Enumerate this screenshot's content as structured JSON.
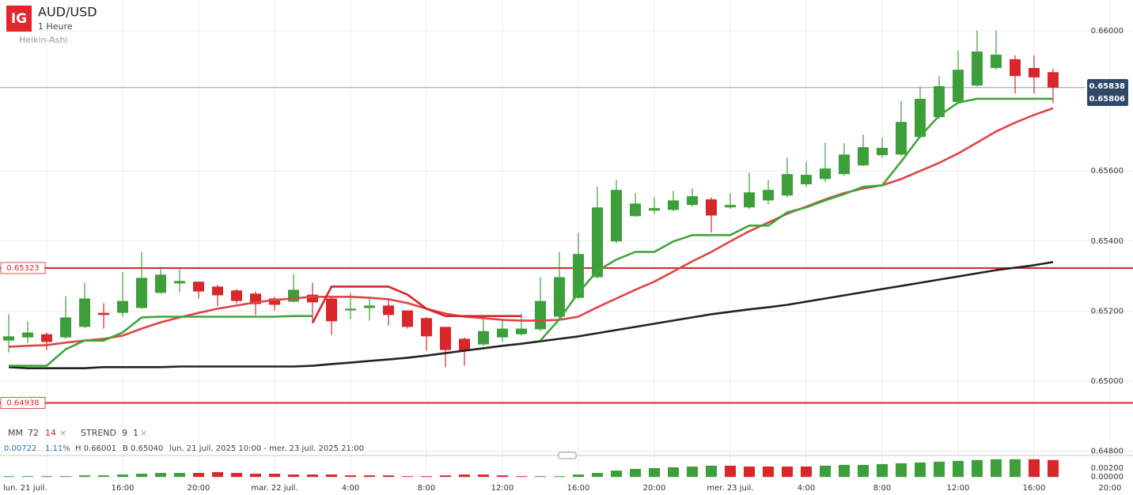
{
  "header": {
    "logo": "IG",
    "symbol": "AUD/USD",
    "interval": "1 Heure",
    "chart_style": "Heikin-Ashi"
  },
  "legend": {
    "ma_label": "MM",
    "ma_slow": "72",
    "ma_fast": "14",
    "close_ma": "×",
    "st_label": "STREND",
    "st_period": "9",
    "st_factor": "1",
    "close_st": "×"
  },
  "info": {
    "change": "0.00722",
    "change_pct": "1.11%",
    "high": "H 0.66001",
    "low": "B 0.65040",
    "range": "lun. 21 juil. 2025 10:00 - mer. 23 juil. 2025 21:00"
  },
  "chart_data": {
    "type": "candlestick",
    "x": [
      10,
      11,
      12,
      13,
      14,
      15,
      16,
      17,
      18,
      19,
      20,
      21,
      22,
      23,
      24,
      25,
      26,
      27,
      28,
      29,
      30,
      31,
      32,
      33,
      34,
      35,
      36,
      37,
      38,
      39,
      40,
      41,
      42,
      43,
      44,
      45,
      46,
      47,
      48,
      49,
      50,
      51,
      52,
      53,
      54,
      55,
      56,
      57,
      58,
      59,
      60,
      61,
      62,
      63,
      64,
      65
    ],
    "open": [
      0.65116,
      0.65125,
      0.65134,
      0.65125,
      0.65155,
      0.65195,
      0.65195,
      0.65209,
      0.65252,
      0.65279,
      0.65284,
      0.6527,
      0.65259,
      0.6525,
      0.65236,
      0.65227,
      0.65247,
      0.65236,
      0.65202,
      0.65209,
      0.65216,
      0.65202,
      0.6518,
      0.65155,
      0.65121,
      0.65105,
      0.65125,
      0.65134,
      0.65148,
      0.65184,
      0.65238,
      0.65297,
      0.65399,
      0.65471,
      0.65487,
      0.65489,
      0.65503,
      0.65519,
      0.65496,
      0.65496,
      0.65516,
      0.6553,
      0.65562,
      0.65577,
      0.65591,
      0.65616,
      0.65645,
      0.65647,
      0.65697,
      0.65754,
      0.65797,
      0.65844,
      0.65894,
      0.65919,
      0.65894,
      0.65882
    ],
    "high": [
      0.65191,
      0.6517,
      0.65139,
      0.65243,
      0.65281,
      0.65223,
      0.65311,
      0.65369,
      0.65327,
      0.6532,
      0.65284,
      0.65275,
      0.65263,
      0.65256,
      0.65241,
      0.65306,
      0.65281,
      0.65241,
      0.65252,
      0.65241,
      0.65232,
      0.65202,
      0.65184,
      0.65155,
      0.65125,
      0.65177,
      0.65173,
      0.65193,
      0.65297,
      0.65369,
      0.65424,
      0.65555,
      0.65575,
      0.65537,
      0.65525,
      0.65543,
      0.6555,
      0.65525,
      0.65537,
      0.65595,
      0.65575,
      0.65638,
      0.65627,
      0.65681,
      0.65679,
      0.65704,
      0.65695,
      0.65799,
      0.6584,
      0.65871,
      0.65943,
      0.66001,
      0.66001,
      0.6593,
      0.6593,
      0.65892
    ],
    "low": [
      0.65082,
      0.65109,
      0.65089,
      0.65121,
      0.65152,
      0.6515,
      0.65184,
      0.65207,
      0.6525,
      0.65254,
      0.65236,
      0.65214,
      0.65222,
      0.65189,
      0.65202,
      0.65225,
      0.65166,
      0.65132,
      0.65177,
      0.65173,
      0.65159,
      0.6515,
      0.65087,
      0.6504,
      0.65044,
      0.651,
      0.65112,
      0.6513,
      0.65143,
      0.6518,
      0.65234,
      0.65293,
      0.65394,
      0.65469,
      0.65478,
      0.65485,
      0.65498,
      0.65424,
      0.65492,
      0.65492,
      0.65505,
      0.65525,
      0.65555,
      0.65568,
      0.65586,
      0.65614,
      0.65638,
      0.65643,
      0.65693,
      0.65749,
      0.65792,
      0.6584,
      0.65889,
      0.65821,
      0.65821,
      0.65794
    ],
    "close": [
      0.65128,
      0.65139,
      0.65112,
      0.65182,
      0.65236,
      0.65189,
      0.65229,
      0.65295,
      0.65304,
      0.65286,
      0.65256,
      0.65245,
      0.65229,
      0.6522,
      0.65218,
      0.65261,
      0.65225,
      0.65171,
      0.65207,
      0.65216,
      0.65189,
      0.65155,
      0.65128,
      0.65089,
      0.65087,
      0.65143,
      0.6515,
      0.6515,
      0.65229,
      0.65297,
      0.65363,
      0.65496,
      0.65546,
      0.65507,
      0.65494,
      0.65516,
      0.65528,
      0.65473,
      0.65503,
      0.65539,
      0.65546,
      0.65591,
      0.65589,
      0.65607,
      0.65647,
      0.65668,
      0.65666,
      0.6574,
      0.65806,
      0.65842,
      0.65889,
      0.65941,
      0.65932,
      0.65871,
      0.65867,
      0.65838
    ],
    "up_color": "#3d9f3a",
    "down_color": "#d8262b",
    "series": [
      {
        "color": "#222222",
        "values": [
          0.6504,
          0.65037,
          0.65037,
          0.65037,
          0.65037,
          0.6504,
          0.6504,
          0.6504,
          0.6504,
          0.65042,
          0.65042,
          0.65042,
          0.65042,
          0.65042,
          0.65042,
          0.65042,
          0.65044,
          0.65049,
          0.65053,
          0.65058,
          0.65062,
          0.65067,
          0.65073,
          0.6508,
          0.65087,
          0.65094,
          0.65101,
          0.65107,
          0.65114,
          0.65121,
          0.65128,
          0.65137,
          0.65146,
          0.65155,
          0.65164,
          0.65173,
          0.65182,
          0.65191,
          0.65198,
          0.65205,
          0.65211,
          0.65218,
          0.65227,
          0.65236,
          0.65245,
          0.65254,
          0.65263,
          0.65272,
          0.65281,
          0.6529,
          0.65299,
          0.65308,
          0.65317,
          0.65324,
          0.65331,
          0.6534
        ]
      },
      {
        "color": "#e04444",
        "values": [
          0.65098,
          0.65101,
          0.65103,
          0.6511,
          0.65116,
          0.65121,
          0.6513,
          0.6515,
          0.65168,
          0.65182,
          0.65195,
          0.65207,
          0.65216,
          0.65225,
          0.65232,
          0.65236,
          0.65241,
          0.65241,
          0.65241,
          0.65238,
          0.65234,
          0.65223,
          0.65207,
          0.65193,
          0.65184,
          0.6518,
          0.65175,
          0.65173,
          0.65173,
          0.65175,
          0.65184,
          0.65211,
          0.65236,
          0.65261,
          0.65284,
          0.65313,
          0.65342,
          0.65369,
          0.65399,
          0.65428,
          0.65453,
          0.65478,
          0.65498,
          0.65519,
          0.65537,
          0.6555,
          0.65559,
          0.65577,
          0.656,
          0.65623,
          0.6565,
          0.65681,
          0.65713,
          0.65738,
          0.6576,
          0.65779
        ]
      },
      {
        "color": "#3fa63b",
        "values": [
          0.65044,
          0.65044,
          0.65044,
          0.65091,
          0.65116,
          0.65116,
          0.65139,
          0.65182,
          0.65184,
          0.65184,
          0.65184,
          0.65184,
          0.65184,
          0.65184,
          0.65184,
          0.65186,
          0.65186,
          null,
          null,
          null,
          null,
          null,
          null,
          null,
          null,
          null,
          null,
          null,
          0.65116,
          0.65177,
          0.65252,
          0.65315,
          0.65347,
          0.65369,
          0.65369,
          0.65399,
          0.65417,
          0.65417,
          0.65417,
          0.65444,
          0.65444,
          0.65482,
          0.65496,
          0.65516,
          0.65534,
          0.65555,
          0.65559,
          0.65627,
          0.65699,
          0.65758,
          0.65795,
          0.65806,
          0.65806,
          0.65806,
          0.65806,
          0.65806
        ]
      },
      {
        "color": "#d8262b",
        "values": [
          null,
          null,
          null,
          null,
          null,
          null,
          null,
          null,
          null,
          null,
          null,
          null,
          null,
          null,
          null,
          null,
          0.65166,
          0.6527,
          0.6527,
          0.6527,
          0.6527,
          0.65247,
          0.65207,
          0.65186,
          0.65186,
          0.65186,
          0.65186,
          0.65186,
          null,
          null,
          null,
          null,
          null,
          null,
          null,
          null,
          null,
          null,
          null,
          null,
          null,
          null,
          null,
          null,
          null,
          null,
          null,
          null,
          null,
          null,
          null,
          null,
          null,
          null,
          null,
          null
        ]
      }
    ],
    "levels": [
      {
        "value": 0.65323,
        "label": "0.65323",
        "color": "#d8262b"
      },
      {
        "value": 0.64938,
        "label": "0.64938",
        "color": "#d8262b"
      }
    ],
    "price_labels": [
      {
        "value": 0.65838,
        "label": "0.65838"
      },
      {
        "value": 0.65806,
        "label": "0.65806"
      }
    ],
    "ylim": [
      0.64788,
      0.66088
    ],
    "yticks": [
      {
        "value": 0.648,
        "label": "0.64800"
      },
      {
        "value": 0.65,
        "label": "0.65000"
      },
      {
        "value": 0.652,
        "label": "0.65200"
      },
      {
        "value": 0.654,
        "label": "0.65400"
      },
      {
        "value": 0.656,
        "label": "0.65600"
      },
      {
        "value": 0.66,
        "label": "0.66000"
      }
    ],
    "xlim": [
      9.54,
      69.21
    ],
    "xticks": [
      {
        "value": 12,
        "label": "lun. 21 juil."
      },
      {
        "value": 16,
        "label": "16:00"
      },
      {
        "value": 20,
        "label": "20:00"
      },
      {
        "value": 24,
        "label": "mar. 22 juil."
      },
      {
        "value": 28,
        "label": "4:00"
      },
      {
        "value": 32,
        "label": "8:00"
      },
      {
        "value": 36,
        "label": "12:00"
      },
      {
        "value": 40,
        "label": "16:00"
      },
      {
        "value": 44,
        "label": "20:00"
      },
      {
        "value": 48,
        "label": "mer. 23 juil."
      },
      {
        "value": 52,
        "label": "4:00"
      },
      {
        "value": 56,
        "label": "8:00"
      },
      {
        "value": 60,
        "label": "12:00"
      },
      {
        "value": 64,
        "label": "16:00"
      },
      {
        "value": 68,
        "label": "20:00"
      }
    ],
    "grid": true,
    "sub_chart": {
      "type": "bar",
      "values": [
        0.00018,
        0.00018,
        0.00018,
        0.00018,
        0.00036,
        0.00036,
        0.00055,
        0.00073,
        0.00091,
        0.00091,
        0.00091,
        0.00109,
        0.00091,
        0.00073,
        0.00073,
        0.00055,
        0.00055,
        0.00055,
        0.00036,
        0.00036,
        0.00036,
        0.00018,
        0.00018,
        0.00036,
        0.00055,
        0.00055,
        0.00036,
        0.00018,
        0.00018,
        0.00018,
        0.00055,
        0.00091,
        0.00145,
        0.00182,
        0.002,
        0.00218,
        0.00236,
        0.00255,
        0.00255,
        0.00236,
        0.00236,
        0.00236,
        0.00236,
        0.00255,
        0.00273,
        0.00273,
        0.00291,
        0.00309,
        0.00327,
        0.00345,
        0.00364,
        0.00382,
        0.004,
        0.004,
        0.004,
        0.00382
      ],
      "colors": [
        "#3d9f3a",
        "#3d9f3a",
        "#3d9f3a",
        "#3d9f3a",
        "#3d9f3a",
        "#3d9f3a",
        "#3d9f3a",
        "#3d9f3a",
        "#3d9f3a",
        "#3d9f3a",
        "#d8262b",
        "#d8262b",
        "#d8262b",
        "#d8262b",
        "#d8262b",
        "#d8262b",
        "#d8262b",
        "#d8262b",
        "#d8262b",
        "#d8262b",
        "#d8262b",
        "#d8262b",
        "#d8262b",
        "#d8262b",
        "#d8262b",
        "#d8262b",
        "#d8262b",
        "#d8262b",
        "#3d9f3a",
        "#3d9f3a",
        "#3d9f3a",
        "#3d9f3a",
        "#3d9f3a",
        "#3d9f3a",
        "#3d9f3a",
        "#3d9f3a",
        "#3d9f3a",
        "#3d9f3a",
        "#d8262b",
        "#d8262b",
        "#d8262b",
        "#d8262b",
        "#d8262b",
        "#3d9f3a",
        "#3d9f3a",
        "#3d9f3a",
        "#3d9f3a",
        "#3d9f3a",
        "#3d9f3a",
        "#3d9f3a",
        "#3d9f3a",
        "#3d9f3a",
        "#3d9f3a",
        "#3d9f3a",
        "#d8262b",
        "#d8262b"
      ],
      "ylim": [
        -0.0005,
        0.0045
      ],
      "yticks": [
        {
          "value": 0,
          "label": "0.00000"
        },
        {
          "value": 0.002,
          "label": "0.00200"
        }
      ]
    }
  }
}
